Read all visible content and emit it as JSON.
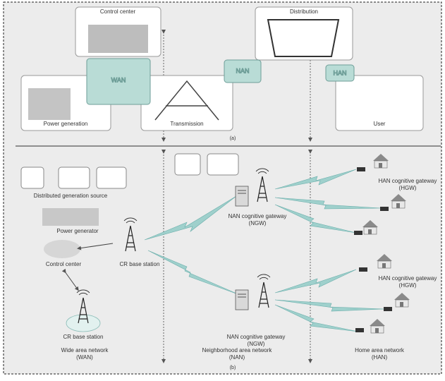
{
  "panel_a": {
    "nodes": [
      "Control center",
      "Distribution",
      "Power generation",
      "Transmission",
      "User"
    ],
    "hubs": [
      "WAN",
      "NAN",
      "HAN"
    ],
    "caption": "(a)"
  },
  "panel_b": {
    "distributed_generation": "Distributed generation source",
    "power_generator": "Power generator",
    "control_center": "Control center",
    "cr_base_station_main": "CR base station",
    "cr_base_station_remote": "CR base station",
    "ngw": [
      [
        "NAN cognitive gateway",
        "(NGW)"
      ],
      [
        "NAN cognitive gateway",
        "(NGW)"
      ]
    ],
    "hgw": [
      [
        "HAN cognitive gateway",
        "(HGW)"
      ],
      [
        "HAN cognitive gateway",
        "(HGW)"
      ]
    ],
    "networks": [
      [
        "Wide area network",
        "(WAN)"
      ],
      [
        "Neighborhood area network",
        "(NAN)"
      ],
      [
        "Home area network",
        "(HAN)"
      ]
    ],
    "caption": "(b)"
  }
}
